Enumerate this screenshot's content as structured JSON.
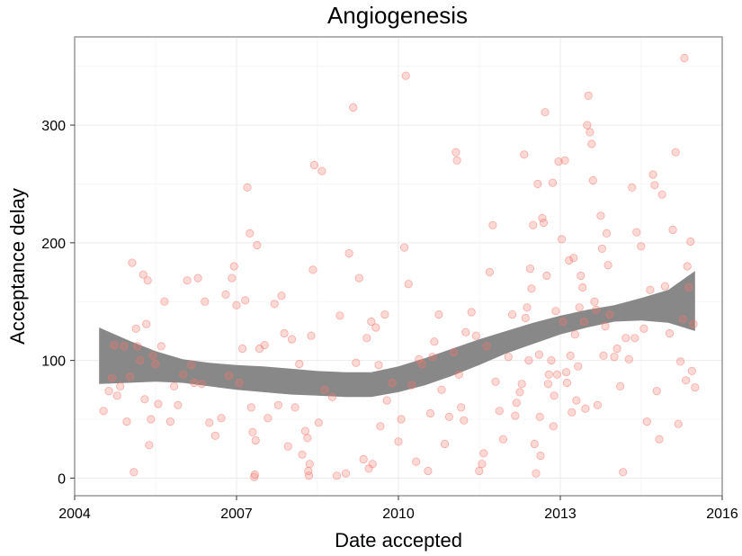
{
  "chart_data": {
    "type": "scatter",
    "title": "Angiogenesis",
    "xlabel": "Date accepted",
    "ylabel": "Acceptance delay",
    "xlim": [
      "2004-01-01",
      "2016-01-01"
    ],
    "ylim": [
      -15,
      375
    ],
    "x_ticks": [
      "2004",
      "2007",
      "2010",
      "2013",
      "2016"
    ],
    "y_ticks": [
      "0",
      "100",
      "200",
      "300"
    ],
    "grid": true,
    "point_color": "#f8766d",
    "band_color": "#888888",
    "points": [
      [
        "2004-07-15",
        57
      ],
      [
        "2004-08-20",
        74
      ],
      [
        "2004-09-10",
        85
      ],
      [
        "2004-09-25",
        113
      ],
      [
        "2004-10-15",
        70
      ],
      [
        "2004-11-05",
        78
      ],
      [
        "2004-12-01",
        112
      ],
      [
        "2004-12-20",
        48
      ],
      [
        "2005-01-10",
        86
      ],
      [
        "2005-01-25",
        183
      ],
      [
        "2005-02-05",
        5
      ],
      [
        "2005-02-20",
        127
      ],
      [
        "2005-03-01",
        112
      ],
      [
        "2005-03-20",
        100
      ],
      [
        "2005-04-10",
        173
      ],
      [
        "2005-04-20",
        67
      ],
      [
        "2005-05-01",
        131
      ],
      [
        "2005-05-10",
        168
      ],
      [
        "2005-05-20",
        28
      ],
      [
        "2005-06-01",
        50
      ],
      [
        "2005-06-15",
        104
      ],
      [
        "2005-07-01",
        97
      ],
      [
        "2005-07-20",
        63
      ],
      [
        "2005-08-10",
        112
      ],
      [
        "2005-09-01",
        150
      ],
      [
        "2005-10-10",
        48
      ],
      [
        "2005-11-05",
        78
      ],
      [
        "2005-12-01",
        62
      ],
      [
        "2006-01-05",
        88
      ],
      [
        "2006-02-01",
        168
      ],
      [
        "2006-03-01",
        96
      ],
      [
        "2006-03-20",
        81
      ],
      [
        "2006-04-15",
        170
      ],
      [
        "2006-05-10",
        80
      ],
      [
        "2006-06-01",
        150
      ],
      [
        "2006-07-01",
        47
      ],
      [
        "2006-08-10",
        36
      ],
      [
        "2006-09-20",
        51
      ],
      [
        "2006-10-20",
        156
      ],
      [
        "2006-11-10",
        87
      ],
      [
        "2006-12-01",
        170
      ],
      [
        "2006-12-15",
        180
      ],
      [
        "2007-01-01",
        147
      ],
      [
        "2007-01-20",
        81
      ],
      [
        "2007-02-10",
        110
      ],
      [
        "2007-03-01",
        151
      ],
      [
        "2007-03-15",
        247
      ],
      [
        "2007-04-01",
        208
      ],
      [
        "2007-04-10",
        60
      ],
      [
        "2007-04-20",
        39
      ],
      [
        "2007-05-01",
        1
      ],
      [
        "2007-05-05",
        3
      ],
      [
        "2007-05-10",
        32
      ],
      [
        "2007-05-20",
        198
      ],
      [
        "2007-06-05",
        110
      ],
      [
        "2007-07-10",
        113
      ],
      [
        "2007-08-01",
        51
      ],
      [
        "2007-09-15",
        148
      ],
      [
        "2007-10-10",
        62
      ],
      [
        "2007-11-01",
        155
      ],
      [
        "2007-11-20",
        123
      ],
      [
        "2007-12-15",
        27
      ],
      [
        "2008-01-10",
        118
      ],
      [
        "2008-02-01",
        60
      ],
      [
        "2008-03-01",
        97
      ],
      [
        "2008-03-20",
        20
      ],
      [
        "2008-04-10",
        40
      ],
      [
        "2008-04-25",
        34
      ],
      [
        "2008-05-01",
        6
      ],
      [
        "2008-05-05",
        2
      ],
      [
        "2008-05-10",
        12
      ],
      [
        "2008-05-20",
        121
      ],
      [
        "2008-06-01",
        177
      ],
      [
        "2008-06-10",
        266
      ],
      [
        "2008-07-10",
        47
      ],
      [
        "2008-08-01",
        261
      ],
      [
        "2008-08-20",
        75
      ],
      [
        "2008-10-10",
        69
      ],
      [
        "2008-11-10",
        2
      ],
      [
        "2008-12-01",
        138
      ],
      [
        "2009-01-10",
        4
      ],
      [
        "2009-02-01",
        191
      ],
      [
        "2009-03-01",
        315
      ],
      [
        "2009-03-20",
        98
      ],
      [
        "2009-04-10",
        170
      ],
      [
        "2009-05-10",
        16
      ],
      [
        "2009-06-01",
        119
      ],
      [
        "2009-06-15",
        8
      ],
      [
        "2009-07-01",
        133
      ],
      [
        "2009-07-10",
        12
      ],
      [
        "2009-08-01",
        128
      ],
      [
        "2009-08-20",
        96
      ],
      [
        "2009-09-01",
        44
      ],
      [
        "2009-10-01",
        139
      ],
      [
        "2009-10-15",
        66
      ],
      [
        "2009-11-20",
        81
      ],
      [
        "2010-01-01",
        31
      ],
      [
        "2010-01-20",
        50
      ],
      [
        "2010-02-10",
        196
      ],
      [
        "2010-02-20",
        342
      ],
      [
        "2010-03-10",
        165
      ],
      [
        "2010-04-01",
        79
      ],
      [
        "2010-05-01",
        14
      ],
      [
        "2010-05-20",
        101
      ],
      [
        "2010-06-10",
        97
      ],
      [
        "2010-07-20",
        6
      ],
      [
        "2010-08-05",
        55
      ],
      [
        "2010-08-20",
        103
      ],
      [
        "2010-09-01",
        116
      ],
      [
        "2010-10-01",
        139
      ],
      [
        "2010-10-20",
        75
      ],
      [
        "2010-11-10",
        29
      ],
      [
        "2010-12-10",
        52
      ],
      [
        "2011-01-10",
        107
      ],
      [
        "2011-01-25",
        277
      ],
      [
        "2011-02-01",
        270
      ],
      [
        "2011-02-15",
        88
      ],
      [
        "2011-03-01",
        60
      ],
      [
        "2011-03-20",
        49
      ],
      [
        "2011-04-01",
        124
      ],
      [
        "2011-05-10",
        141
      ],
      [
        "2011-06-10",
        121
      ],
      [
        "2011-07-01",
        6
      ],
      [
        "2011-07-20",
        12
      ],
      [
        "2011-08-01",
        21
      ],
      [
        "2011-08-20",
        112
      ],
      [
        "2011-09-10",
        175
      ],
      [
        "2011-10-01",
        215
      ],
      [
        "2011-10-20",
        82
      ],
      [
        "2011-11-15",
        57
      ],
      [
        "2011-12-10",
        33
      ],
      [
        "2012-01-15",
        103
      ],
      [
        "2012-02-10",
        139
      ],
      [
        "2012-03-01",
        53
      ],
      [
        "2012-03-10",
        64
      ],
      [
        "2012-04-01",
        73
      ],
      [
        "2012-04-15",
        80
      ],
      [
        "2012-05-01",
        275
      ],
      [
        "2012-05-10",
        136
      ],
      [
        "2012-05-20",
        145
      ],
      [
        "2012-06-01",
        100
      ],
      [
        "2012-06-10",
        178
      ],
      [
        "2012-06-20",
        161
      ],
      [
        "2012-07-01",
        215
      ],
      [
        "2012-07-10",
        29
      ],
      [
        "2012-07-20",
        4
      ],
      [
        "2012-08-01",
        250
      ],
      [
        "2012-08-10",
        105
      ],
      [
        "2012-08-15",
        52
      ],
      [
        "2012-08-20",
        19
      ],
      [
        "2012-09-01",
        221
      ],
      [
        "2012-09-10",
        217
      ],
      [
        "2012-09-20",
        311
      ],
      [
        "2012-10-01",
        172
      ],
      [
        "2012-10-10",
        80
      ],
      [
        "2012-10-15",
        88
      ],
      [
        "2012-11-01",
        100
      ],
      [
        "2012-11-10",
        251
      ],
      [
        "2012-11-15",
        44
      ],
      [
        "2012-11-20",
        70
      ],
      [
        "2012-12-01",
        142
      ],
      [
        "2012-12-10",
        88
      ],
      [
        "2012-12-20",
        269
      ],
      [
        "2013-01-10",
        203
      ],
      [
        "2013-01-20",
        133
      ],
      [
        "2013-02-01",
        270
      ],
      [
        "2013-02-10",
        90
      ],
      [
        "2013-02-15",
        81
      ],
      [
        "2013-03-01",
        185
      ],
      [
        "2013-03-10",
        104
      ],
      [
        "2013-03-20",
        56
      ],
      [
        "2013-04-01",
        187
      ],
      [
        "2013-04-10",
        122
      ],
      [
        "2013-04-20",
        66
      ],
      [
        "2013-05-01",
        95
      ],
      [
        "2013-05-10",
        145
      ],
      [
        "2013-05-20",
        172
      ],
      [
        "2013-06-01",
        162
      ],
      [
        "2013-06-10",
        133
      ],
      [
        "2013-06-20",
        59
      ],
      [
        "2013-07-01",
        300
      ],
      [
        "2013-07-10",
        325
      ],
      [
        "2013-07-20",
        294
      ],
      [
        "2013-08-01",
        284
      ],
      [
        "2013-08-10",
        253
      ],
      [
        "2013-08-20",
        150
      ],
      [
        "2013-09-01",
        143
      ],
      [
        "2013-09-10",
        62
      ],
      [
        "2013-10-01",
        223
      ],
      [
        "2013-10-10",
        195
      ],
      [
        "2013-10-20",
        104
      ],
      [
        "2013-11-01",
        129
      ],
      [
        "2013-11-10",
        208
      ],
      [
        "2013-11-20",
        181
      ],
      [
        "2013-12-01",
        139
      ],
      [
        "2014-01-01",
        103
      ],
      [
        "2014-01-20",
        110
      ],
      [
        "2014-02-10",
        78
      ],
      [
        "2014-03-01",
        5
      ],
      [
        "2014-03-20",
        119
      ],
      [
        "2014-04-10",
        101
      ],
      [
        "2014-05-01",
        247
      ],
      [
        "2014-05-20",
        119
      ],
      [
        "2014-06-01",
        209
      ],
      [
        "2014-07-01",
        197
      ],
      [
        "2014-07-20",
        127
      ],
      [
        "2014-08-10",
        48
      ],
      [
        "2014-09-01",
        160
      ],
      [
        "2014-09-20",
        258
      ],
      [
        "2014-10-01",
        249
      ],
      [
        "2014-10-15",
        74
      ],
      [
        "2014-11-01",
        33
      ],
      [
        "2014-11-20",
        241
      ],
      [
        "2014-12-10",
        163
      ],
      [
        "2015-01-10",
        123
      ],
      [
        "2015-02-01",
        211
      ],
      [
        "2015-02-20",
        277
      ],
      [
        "2015-03-10",
        46
      ],
      [
        "2015-03-25",
        99
      ],
      [
        "2015-04-10",
        135
      ],
      [
        "2015-04-20",
        357
      ],
      [
        "2015-05-01",
        83
      ],
      [
        "2015-05-10",
        180
      ],
      [
        "2015-05-20",
        162
      ],
      [
        "2015-06-01",
        201
      ],
      [
        "2015-06-10",
        91
      ],
      [
        "2015-06-20",
        131
      ],
      [
        "2015-07-01",
        77
      ]
    ],
    "smooth_band": {
      "x": [
        "2004-06-15",
        "2005-01-01",
        "2005-07-01",
        "2006-01-01",
        "2006-07-01",
        "2007-01-01",
        "2007-07-01",
        "2008-01-01",
        "2008-07-01",
        "2009-01-01",
        "2009-07-01",
        "2010-01-01",
        "2010-07-01",
        "2011-01-01",
        "2011-07-01",
        "2012-01-01",
        "2012-07-01",
        "2013-01-01",
        "2013-07-01",
        "2014-01-01",
        "2014-07-01",
        "2015-01-01",
        "2015-07-01"
      ],
      "upper": [
        128,
        117,
        108,
        101,
        98,
        96,
        95,
        93,
        91,
        90,
        90,
        95,
        102,
        110,
        118,
        125,
        132,
        138,
        143,
        147,
        153,
        160,
        176
      ],
      "lower": [
        80,
        81,
        82,
        81,
        78,
        75,
        73,
        71,
        70,
        69,
        69,
        73,
        79,
        87,
        96,
        106,
        114,
        122,
        128,
        133,
        134,
        132,
        125
      ]
    }
  }
}
